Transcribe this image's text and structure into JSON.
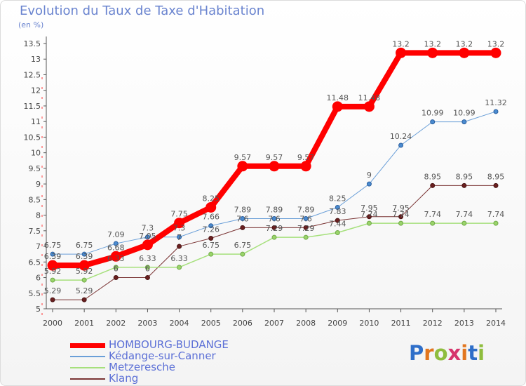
{
  "header": {
    "title": "Evolution du Taux de Taxe d'Habitation",
    "unit": "(en %)"
  },
  "logo": {
    "text": "Proxiti",
    "colors": [
      "#2f6fc9",
      "#e2761f",
      "#8fbd3e",
      "#d6336c",
      "#e2761f",
      "#2f6fc9",
      "#8fbd3e"
    ]
  },
  "chart_data": {
    "type": "line",
    "x": [
      "2000",
      "2001",
      "2002",
      "2003",
      "2004",
      "2005",
      "2006",
      "2007",
      "2008",
      "2009",
      "2010",
      "2011",
      "2012",
      "2013",
      "2014"
    ],
    "ylim": [
      5,
      13.5
    ],
    "yticks": [
      "5",
      "5.5",
      "6",
      "6.5",
      "7",
      "7.5",
      "8",
      "8.5",
      "9",
      "9.5",
      "10",
      "10.5",
      "11",
      "11.5",
      "12",
      "12.5",
      "13",
      "13.5"
    ],
    "grid": false,
    "legend_position": "bottom-left",
    "series": [
      {
        "name": "HOMBOURG-BUDANGE",
        "color": "#ff0000",
        "values": [
          6.39,
          6.39,
          6.68,
          7.05,
          7.75,
          8.25,
          9.57,
          9.57,
          9.57,
          11.48,
          11.48,
          13.2,
          13.2,
          13.2,
          13.2
        ],
        "labels": [
          "6.39",
          "6.39",
          "6.68",
          "7.05",
          "7.75",
          "8.25",
          "9.57",
          "9.57",
          "9.57",
          "11.48",
          "11.48",
          "13.2",
          "13.2",
          "13.2",
          "13.2"
        ]
      },
      {
        "name": "Kédange-sur-Canner",
        "color": "#6a9fd8",
        "values": [
          6.75,
          6.75,
          7.09,
          7.3,
          7.3,
          7.66,
          7.89,
          7.89,
          7.89,
          8.25,
          9,
          10.24,
          10.99,
          10.99,
          11.32
        ],
        "labels": [
          "6.75",
          "6.75",
          "7.09",
          "7.3",
          "7.3",
          "7.66",
          "7.89",
          "7.89",
          "7.89",
          "8.25",
          "9",
          "10.24",
          "10.99",
          "10.99",
          "11.32"
        ]
      },
      {
        "name": "Metzeresche",
        "color": "#a6e07c",
        "values": [
          5.92,
          5.92,
          6.33,
          6.33,
          6.33,
          6.75,
          6.75,
          7.29,
          7.29,
          7.44,
          7.74,
          7.74,
          7.74,
          7.74,
          7.74
        ],
        "labels": [
          "5.92",
          "5.92",
          "6.33",
          "6.33",
          "6.33",
          "6.75",
          "6.75",
          "7.29",
          "7.29",
          "7.44",
          "7.74",
          "7.74",
          "7.74",
          "7.74",
          "7.74"
        ]
      },
      {
        "name": "Klang",
        "color": "#7a3434",
        "values": [
          5.29,
          5.29,
          6,
          6,
          7,
          7.26,
          7.6,
          7.6,
          7.6,
          7.83,
          7.95,
          7.95,
          8.95,
          8.95,
          8.95
        ],
        "labels": [
          "5.29",
          "5.29",
          "6",
          "6",
          "7",
          "7.26",
          "7.6",
          "7.6",
          "7.6",
          "7.83",
          "7.95",
          "7.95",
          "8.95",
          "8.95",
          "8.95"
        ]
      }
    ]
  }
}
